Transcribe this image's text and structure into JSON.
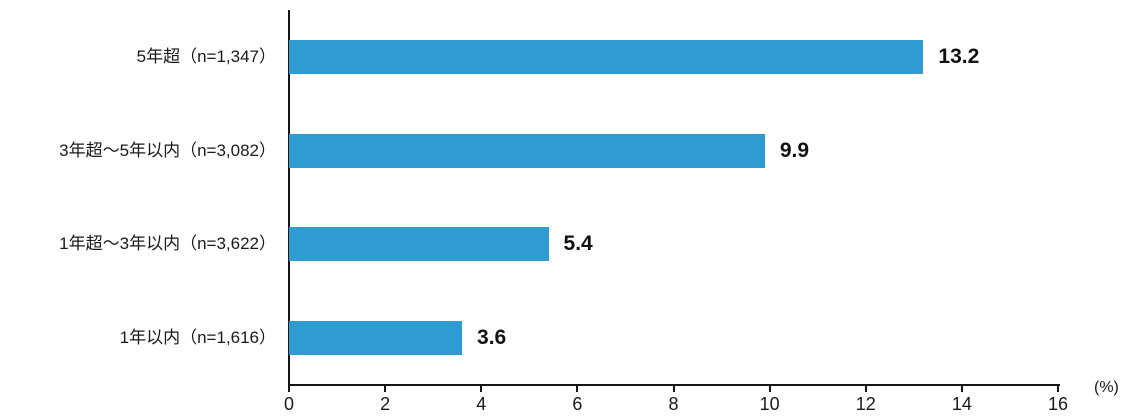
{
  "chart_data": {
    "type": "bar",
    "orientation": "horizontal",
    "title": "",
    "xlabel": "",
    "ylabel": "",
    "unit_label": "(%)",
    "categories": [
      "5年超（n=1,347）",
      "3年超～5年以内（n=3,082）",
      "1年超～3年以内（n=3,622）",
      "1年以内（n=1,616）"
    ],
    "values": [
      13.2,
      9.9,
      5.4,
      3.6
    ],
    "value_labels": [
      "13.2",
      "9.9",
      "5.4",
      "3.6"
    ],
    "xlim": [
      0,
      16
    ],
    "x_ticks": [
      0,
      2,
      4,
      6,
      8,
      10,
      12,
      14,
      16
    ],
    "x_tick_labels": [
      "0",
      "2",
      "4",
      "6",
      "8",
      "10",
      "12",
      "14",
      "16"
    ],
    "grid": false,
    "legend": null,
    "bar_color": "#2E9BD2",
    "axis_color": "#151515",
    "label_color": "#1a1a1a",
    "value_label_color": "#111111"
  }
}
